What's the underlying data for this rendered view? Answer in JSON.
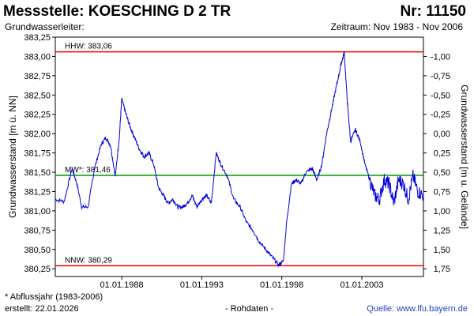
{
  "header": {
    "title": "Messstelle: KOESCHING D 2 TR",
    "number": "Nr: 11150",
    "aquifer": "Grundwasserleiter:",
    "period": "Zeitraum: Nov 1983 - Nov 2006"
  },
  "footer": {
    "note": "* Abflussjahr (1983-2006)",
    "created": "erstellt:   22.01.2026",
    "raw_data": "- Rohdaten -",
    "source": "Quelle:  www.lfu.bayern.de"
  },
  "colors": {
    "series": "#0000dd",
    "hhw": "#ee0000",
    "nnw": "#ee0000",
    "mhw": "#009900",
    "axis": "#000000"
  },
  "chart_data": {
    "type": "line",
    "ylabel": "Grundwasserstand [m ü. NN]",
    "y2label": "Grundwasserstand [m u. Gelände]",
    "ylim": [
      380.15,
      383.25
    ],
    "yticks": [
      "383,25",
      "383,00",
      "382,75",
      "382,50",
      "382,25",
      "382,00",
      "381,75",
      "381,50",
      "381,25",
      "381,00",
      "380,75",
      "380,50",
      "380,25"
    ],
    "ytick_values": [
      383.25,
      383.0,
      382.75,
      382.5,
      382.25,
      382.0,
      381.75,
      381.5,
      381.25,
      381.0,
      380.75,
      380.5,
      380.25
    ],
    "y2ticks": [
      "-1,00",
      "-0,75",
      "-0,50",
      "-0,25",
      "0,00",
      "0,25",
      "0,50",
      "0,75",
      "1,00",
      "1,25",
      "1,50",
      "1,75"
    ],
    "y2tick_values": [
      383.0,
      382.75,
      382.5,
      382.25,
      382.0,
      381.75,
      381.5,
      381.25,
      381.0,
      380.75,
      380.5,
      380.25
    ],
    "xlim": [
      1983.85,
      2006.85
    ],
    "xticks": [
      "01.01.1988",
      "01.01.1993",
      "01.01.1998",
      "01.01.2003"
    ],
    "xtick_values": [
      1988.0,
      1993.0,
      1998.0,
      2003.0
    ],
    "reference_lines": [
      {
        "label": "HHW: 383,06",
        "value": 383.06,
        "color": "#ee0000"
      },
      {
        "label": "MW*: 381,46",
        "value": 381.46,
        "color": "#009900"
      },
      {
        "label": "NNW: 380,29",
        "value": 380.29,
        "color": "#ee0000"
      }
    ],
    "series": [
      {
        "x": [
          1983.85,
          1984.4,
          1984.9,
          1985.2,
          1985.5,
          1985.9,
          1986.3,
          1986.7,
          1987.0,
          1987.3,
          1987.6,
          1987.85,
          1988.0,
          1988.2,
          1988.5,
          1988.8,
          1989.1,
          1989.4,
          1989.7,
          1990.0,
          1990.3,
          1990.6,
          1990.9,
          1991.2,
          1991.5,
          1991.8,
          1992.1,
          1992.4,
          1992.7,
          1993.0,
          1993.3,
          1993.6,
          1993.9,
          1994.2,
          1994.6,
          1995.0,
          1995.4,
          1995.8,
          1996.2,
          1996.6,
          1997.0,
          1997.4,
          1997.8,
          1998.1,
          1998.3,
          1998.6,
          1998.9,
          1999.2,
          1999.5,
          1999.9,
          2000.2,
          2000.5,
          2000.8,
          2001.1,
          2001.4,
          2001.7,
          2001.9,
          2002.1,
          2002.3,
          2002.6,
          2002.9,
          2003.2,
          2003.5,
          2003.8,
          2004.1,
          2004.4,
          2004.7,
          2005.0,
          2005.3,
          2005.6,
          2005.9,
          2006.2,
          2006.5,
          2006.85
        ],
        "y": [
          381.15,
          381.12,
          381.55,
          381.35,
          381.05,
          381.05,
          381.55,
          381.85,
          381.95,
          381.85,
          381.45,
          381.95,
          382.45,
          382.3,
          382.1,
          381.95,
          381.8,
          381.7,
          381.75,
          381.6,
          381.3,
          381.2,
          381.1,
          381.15,
          381.05,
          381.05,
          381.1,
          381.2,
          381.05,
          381.15,
          381.2,
          381.1,
          381.75,
          381.6,
          381.45,
          381.15,
          381.05,
          380.85,
          380.75,
          380.6,
          380.5,
          380.4,
          380.3,
          380.35,
          380.85,
          381.35,
          381.4,
          381.35,
          381.5,
          381.55,
          381.4,
          381.6,
          382.0,
          382.3,
          382.6,
          382.9,
          383.05,
          382.4,
          381.9,
          382.05,
          381.9,
          381.6,
          381.4,
          381.2,
          381.15,
          381.4,
          381.35,
          381.1,
          381.4,
          381.35,
          381.15,
          381.45,
          381.25,
          381.2
        ]
      }
    ]
  }
}
